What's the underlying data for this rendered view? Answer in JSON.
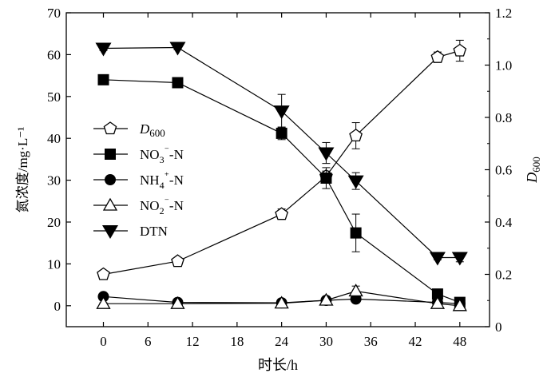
{
  "chart_data": {
    "type": "line",
    "xlabel": "时长/h",
    "ylabel_left": "氮浓度/mg·L⁻¹",
    "ylabel_right": "D600",
    "xlim": [
      -5,
      52
    ],
    "ylim_left": [
      -5,
      70
    ],
    "ylim_right": [
      0,
      1.2
    ],
    "x_ticks": [
      0,
      6,
      12,
      18,
      24,
      30,
      36,
      42,
      48
    ],
    "y_ticks_left": [
      0,
      10,
      20,
      30,
      40,
      50,
      60,
      70
    ],
    "y_ticks_right": [
      "0",
      "0.2",
      "0.4",
      "0.6",
      "0.8",
      "1.0",
      "1.2"
    ],
    "grid": false,
    "legend_position": "left-middle",
    "series": [
      {
        "name": "D600",
        "axis": "right",
        "marker": "pentagon-open",
        "x": [
          0,
          10,
          24,
          30,
          34,
          45,
          48
        ],
        "y": [
          0.2,
          0.25,
          0.43,
          0.575,
          0.73,
          1.03,
          1.055
        ],
        "err": [
          0.01,
          0.01,
          0.02,
          0.02,
          0.05,
          0.02,
          0.04
        ]
      },
      {
        "name": "NO3⁻-N",
        "axis": "left",
        "marker": "square-filled",
        "x": [
          0,
          10,
          24,
          30,
          34,
          45,
          48
        ],
        "y": [
          54,
          53.3,
          41.2,
          30.5,
          17.4,
          2.8,
          0.8
        ],
        "err": [
          0.5,
          0.5,
          1.5,
          2.5,
          4.5,
          1,
          0.5
        ]
      },
      {
        "name": "NH4⁺-N",
        "axis": "left",
        "marker": "circle-filled",
        "x": [
          0,
          10,
          24,
          30,
          34,
          45,
          48
        ],
        "y": [
          2.2,
          0.8,
          0.7,
          1.3,
          1.6,
          0.8,
          0.5
        ],
        "err": [
          0.3,
          0.2,
          0.2,
          0.3,
          0.4,
          0.2,
          0.2
        ]
      },
      {
        "name": "NO2⁻-N",
        "axis": "left",
        "marker": "triangle-up-open",
        "x": [
          0,
          10,
          24,
          30,
          34,
          45,
          48
        ],
        "y": [
          0.5,
          0.5,
          0.6,
          1.3,
          3.5,
          0.5,
          0
        ],
        "err": [
          0.2,
          0.2,
          0.2,
          0.4,
          1.2,
          0.2,
          0.2
        ]
      },
      {
        "name": "DTN",
        "axis": "left",
        "marker": "triangle-down-filled",
        "x": [
          0,
          10,
          24,
          30,
          34,
          45,
          48
        ],
        "y": [
          61.5,
          61.7,
          46.5,
          36.5,
          29.8,
          11.5,
          11.5
        ],
        "err": [
          0.5,
          0.5,
          4,
          2.5,
          2,
          0.5,
          1
        ]
      }
    ],
    "legend": [
      {
        "marker": "pentagon-open",
        "label": "D600"
      },
      {
        "marker": "square-filled",
        "label": "NO3⁻-N"
      },
      {
        "marker": "circle-filled",
        "label": "NH4⁺-N"
      },
      {
        "marker": "triangle-up-open",
        "label": "NO2⁻-N"
      },
      {
        "marker": "triangle-down-filled",
        "label": "DTN"
      }
    ]
  }
}
